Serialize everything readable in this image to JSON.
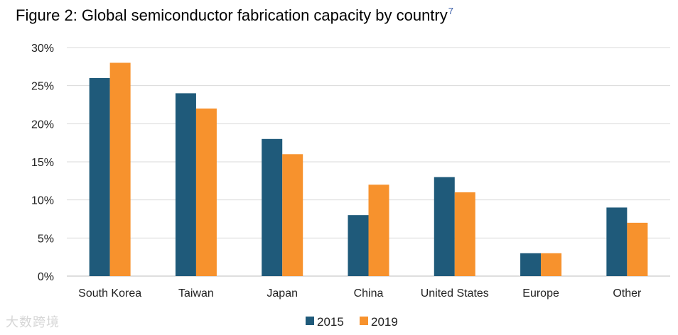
{
  "chart_data": {
    "type": "bar",
    "title": "Figure 2: Global semiconductor fabrication capacity by country",
    "title_footnote": "7",
    "categories": [
      "South Korea",
      "Taiwan",
      "Japan",
      "China",
      "United States",
      "Europe",
      "Other"
    ],
    "series": [
      {
        "name": "2015",
        "color": "#1f5a7a",
        "values": [
          26,
          24,
          18,
          8,
          13,
          3,
          9
        ]
      },
      {
        "name": "2019",
        "color": "#f7922d",
        "values": [
          28,
          22,
          16,
          12,
          11,
          3,
          7
        ]
      }
    ],
    "xlabel": "",
    "ylabel": "",
    "ylim": [
      0,
      30
    ],
    "yticks": [
      0,
      5,
      10,
      15,
      20,
      25,
      30
    ],
    "ytick_suffix": "%",
    "grid": true,
    "legend_position": "bottom-center"
  },
  "watermark": "大数跨境"
}
